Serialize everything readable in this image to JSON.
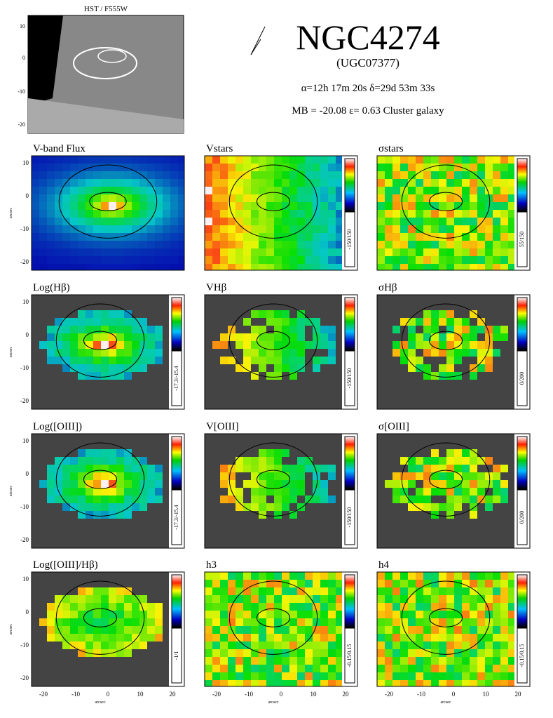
{
  "header": {
    "hst_label": "HST / F555W",
    "name": "NGC4274",
    "alt_name": "(UGC07377)",
    "coords": "α=12h 17m 20s   δ=29d 53m 33s",
    "props": "MB = -20.08    ε= 0.63    Cluster galaxy"
  },
  "panels": [
    {
      "title": "V-band Flux"
    },
    {
      "title": "Vstars",
      "range": "-150/150"
    },
    {
      "title": "σstars",
      "range": "55/150"
    },
    {
      "title": "Log(Hβ)",
      "range": "-17.3/-15.4"
    },
    {
      "title": "VHβ",
      "range": "-150/150"
    },
    {
      "title": "σHβ",
      "range": "0/200"
    },
    {
      "title": "Log([OIII])",
      "range": "-17.3/-15.4"
    },
    {
      "title": "V[OIII]",
      "range": "-150/150"
    },
    {
      "title": "σ[OIII]",
      "range": "0/200"
    },
    {
      "title": "Log([OIII]/Hβ)",
      "range": "-1/1"
    },
    {
      "title": "h3",
      "range": "-0.15/0.15"
    },
    {
      "title": "h4",
      "range": "-0.15/0.15"
    }
  ],
  "axes": {
    "yticks": [
      "10",
      "0",
      "-10",
      "-20"
    ],
    "xticks": [
      "-20",
      "-10",
      "0",
      "10",
      "20"
    ],
    "label": "arcsec"
  }
}
